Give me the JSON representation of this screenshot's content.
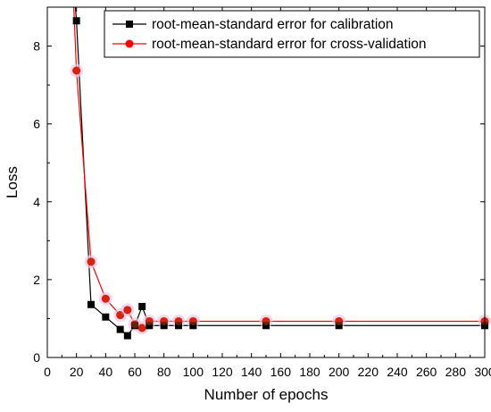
{
  "chart_data": {
    "type": "line",
    "title": "",
    "xlabel": "Number of epochs",
    "ylabel": "Loss",
    "xlim": [
      0,
      300
    ],
    "ylim": [
      0,
      9
    ],
    "xticks": [
      "0",
      "20",
      "40",
      "60",
      "80",
      "100",
      "120",
      "140",
      "160",
      "180",
      "200",
      "220",
      "240",
      "260",
      "280",
      "300"
    ],
    "yticks": [
      "0",
      "2",
      "4",
      "6",
      "8"
    ],
    "grid": false,
    "legend_position": "top-right",
    "series": [
      {
        "name": "root-mean-standard error for calibration",
        "color": "#000000",
        "marker": "square",
        "x": [
          20,
          30,
          40,
          50,
          55,
          60,
          65,
          70,
          80,
          90,
          100,
          150,
          200,
          300
        ],
        "y": [
          8.65,
          1.36,
          1.04,
          0.72,
          0.56,
          0.82,
          1.31,
          0.82,
          0.82,
          0.82,
          0.82,
          0.82,
          0.82,
          0.82
        ]
      },
      {
        "name": "root-mean-standard error for cross-validation",
        "color": "#ff0000",
        "marker": "circle",
        "x": [
          20,
          30,
          40,
          50,
          55,
          60,
          65,
          70,
          80,
          90,
          100,
          150,
          200,
          300
        ],
        "y": [
          7.37,
          2.46,
          1.51,
          1.09,
          1.22,
          0.85,
          0.76,
          0.93,
          0.93,
          0.93,
          0.93,
          0.93,
          0.93,
          0.93
        ]
      }
    ],
    "offscale_lead": {
      "x": 17,
      "y": 10
    }
  }
}
